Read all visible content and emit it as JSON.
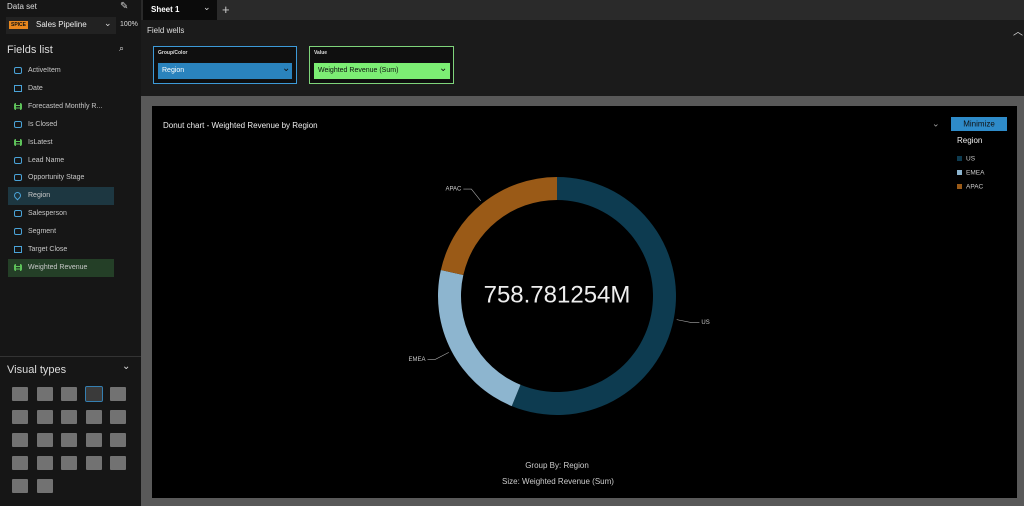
{
  "sidebar": {
    "dataset_label": "Data set",
    "spice": "SPICE",
    "dataset": "Sales Pipeline",
    "percent": "100%",
    "fields_title": "Fields list",
    "fields": [
      "ActiveItem",
      "Date",
      "Forecasted Monthly R...",
      "Is Closed",
      "IsLatest",
      "Lead Name",
      "Opportunity Stage",
      "Region",
      "Salesperson",
      "Segment",
      "Target Close",
      "Weighted Revenue"
    ],
    "visual_types_title": "Visual types"
  },
  "tabs": {
    "sheet": "Sheet 1"
  },
  "field_wells": {
    "title": "Field wells",
    "group_label": "Group/Color",
    "group_value": "Region",
    "value_label": "Value",
    "value_value": "Weighted Revenue (Sum)"
  },
  "chart_data": {
    "type": "donut",
    "title": "Donut chart - Weighted Revenue by Region",
    "center_label": "758.781254M",
    "categories": [
      "US",
      "EMEA",
      "APAC"
    ],
    "values": [
      426.5,
      169.2,
      163.1
    ],
    "colors": [
      "#0d3b50",
      "#8db5cf",
      "#9a5a17"
    ],
    "legend_title": "Region",
    "legend": "top-right",
    "button": "Minimize",
    "group_by": "Group By: Region",
    "size_by": "Size: Weighted Revenue (Sum)"
  }
}
